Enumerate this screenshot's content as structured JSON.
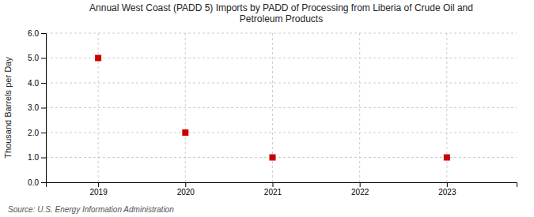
{
  "chart_data": {
    "type": "scatter",
    "title": "Annual West Coast (PADD 5) Imports by PADD of Processing from Liberia of Crude Oil and\nPetroleum Products",
    "y_label": "Thousand Barrels per Day",
    "source": "Source: U.S. Energy Information Administration",
    "x": [
      2019,
      2020,
      2021,
      2023
    ],
    "values": [
      5.0,
      2.0,
      1.0,
      1.0
    ],
    "color": "#cc0000",
    "marker": "square",
    "xlim": [
      2018.4,
      2023.8
    ],
    "ylim": [
      0.0,
      6.0
    ],
    "xticks": [
      2019,
      2020,
      2021,
      2022,
      2023
    ],
    "yticks": [
      {
        "value": 0.0,
        "label": "0.0"
      },
      {
        "value": 1.0,
        "label": "1.0"
      },
      {
        "value": 2.0,
        "label": "2.0"
      },
      {
        "value": 3.0,
        "label": "3.0"
      },
      {
        "value": 4.0,
        "label": "4.0"
      },
      {
        "value": 5.0,
        "label": "5.0"
      },
      {
        "value": 6.0,
        "label": "6.0"
      }
    ],
    "grid": true
  }
}
